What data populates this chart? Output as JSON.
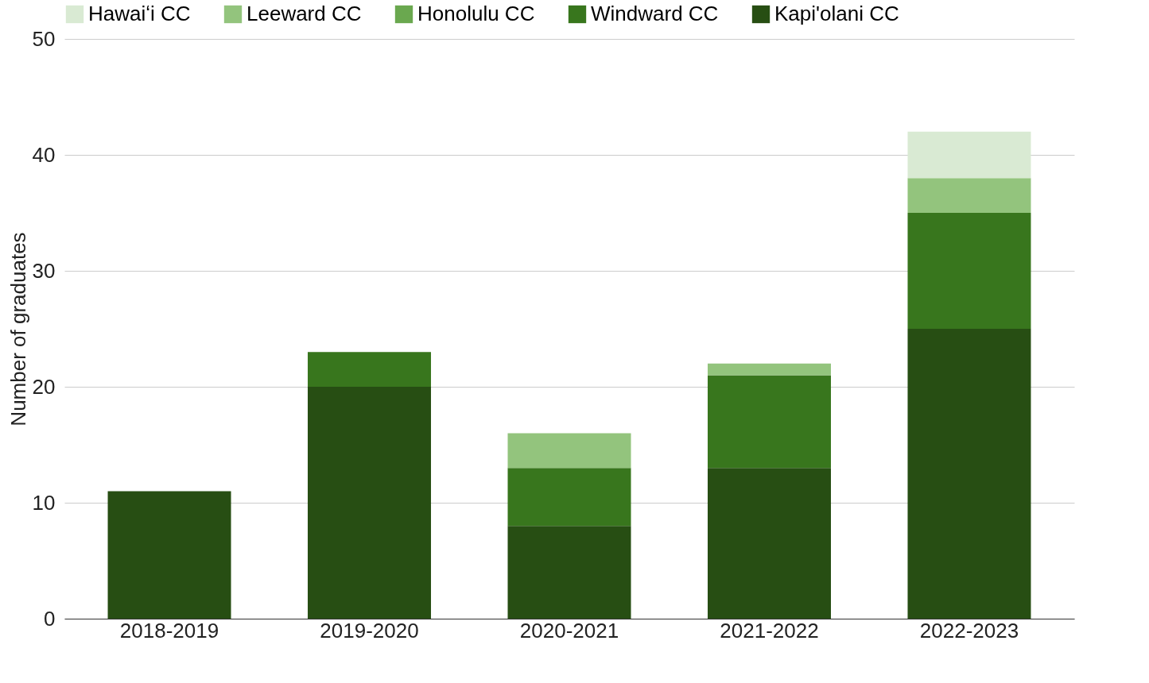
{
  "chart_data": {
    "type": "bar",
    "stacked": true,
    "ylabel": "Number of graduates",
    "categories": [
      "2018-2019",
      "2019-2020",
      "2020-2021",
      "2021-2022",
      "2022-2023"
    ],
    "series": [
      {
        "name": "Kapi'olani CC",
        "color": "#274e13",
        "values": [
          11,
          20,
          8,
          13,
          25
        ]
      },
      {
        "name": "Windward CC",
        "color": "#38761d",
        "values": [
          null,
          3,
          5,
          8,
          10
        ]
      },
      {
        "name": "Honolulu CC",
        "color": "#6aa84f",
        "values": [
          null,
          null,
          null,
          null,
          null
        ]
      },
      {
        "name": "Leeward CC",
        "color": "#93c47d",
        "values": [
          null,
          null,
          3,
          1,
          3
        ]
      },
      {
        "name": "Hawaiʻi CC",
        "color": "#d9ead3",
        "values": [
          null,
          null,
          null,
          null,
          4
        ]
      }
    ],
    "ylim": [
      0,
      50
    ],
    "yticks": [
      0,
      10,
      20,
      30,
      40,
      50
    ],
    "grid": "y",
    "legend": "top"
  }
}
